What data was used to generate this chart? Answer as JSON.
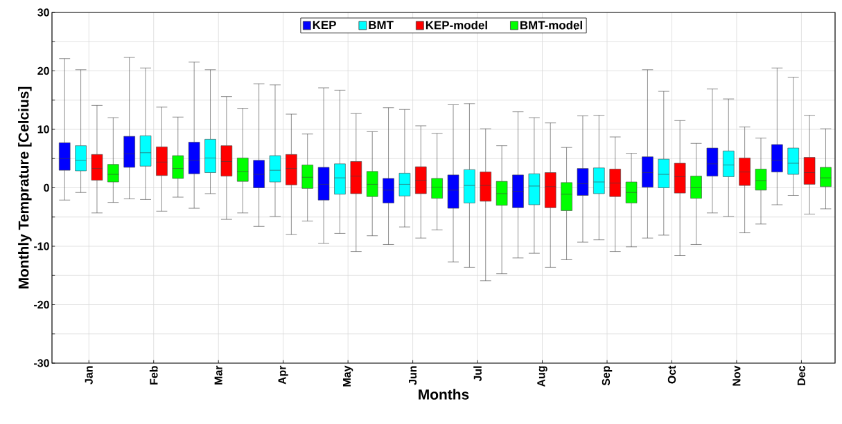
{
  "chart_data": {
    "type": "box",
    "xlabel": "Months",
    "ylabel": "Monthly Temprature [Celcius]",
    "categories": [
      "Jan",
      "Feb",
      "Mar",
      "Apr",
      "May",
      "Jun",
      "Jul",
      "Aug",
      "Sep",
      "Oct",
      "Nov",
      "Dec"
    ],
    "ylim": [
      -30,
      30
    ],
    "yticks": [
      -30,
      {
        "value": -25,
        "label": null
      },
      -20,
      {
        "value": -15,
        "label": null
      },
      -10,
      {
        "value": -5,
        "label": null
      },
      0,
      {
        "value": 5,
        "label": null
      },
      10,
      {
        "value": 15,
        "label": null
      },
      20,
      {
        "value": 25,
        "label": null
      },
      30
    ],
    "grid": true,
    "legend": "top",
    "series": [
      {
        "name": "KEP",
        "color": "#0000ff",
        "boxes": [
          {
            "low": -2.1,
            "q1": 3.0,
            "median": 5.0,
            "q3": 7.7,
            "high": 22.1
          },
          {
            "low": -1.9,
            "q1": 3.5,
            "median": 5.8,
            "q3": 8.8,
            "high": 22.3
          },
          {
            "low": -3.5,
            "q1": 2.4,
            "median": 4.7,
            "q3": 7.8,
            "high": 21.5
          },
          {
            "low": -6.6,
            "q1": 0.0,
            "median": 2.3,
            "q3": 4.7,
            "high": 17.8
          },
          {
            "low": -9.5,
            "q1": -2.1,
            "median": 0.6,
            "q3": 3.5,
            "high": 17.1
          },
          {
            "low": -9.7,
            "q1": -2.6,
            "median": -0.4,
            "q3": 1.6,
            "high": 13.7
          },
          {
            "low": -12.7,
            "q1": -3.5,
            "median": -0.4,
            "q3": 2.2,
            "high": 14.2
          },
          {
            "low": -12.0,
            "q1": -3.4,
            "median": -0.6,
            "q3": 2.2,
            "high": 13.0
          },
          {
            "low": -9.3,
            "q1": -1.3,
            "median": 0.7,
            "q3": 3.3,
            "high": 12.3
          },
          {
            "low": -8.6,
            "q1": 0.1,
            "median": 2.6,
            "q3": 5.3,
            "high": 20.2
          },
          {
            "low": -4.3,
            "q1": 2.0,
            "median": 4.1,
            "q3": 6.8,
            "high": 16.9
          },
          {
            "low": -2.9,
            "q1": 2.7,
            "median": 4.7,
            "q3": 7.4,
            "high": 20.5
          }
        ]
      },
      {
        "name": "BMT",
        "color": "#00ffff",
        "boxes": [
          {
            "low": -0.8,
            "q1": 2.9,
            "median": 4.7,
            "q3": 7.2,
            "high": 20.2
          },
          {
            "low": -2.0,
            "q1": 3.7,
            "median": 6.0,
            "q3": 8.9,
            "high": 20.5
          },
          {
            "low": -1.0,
            "q1": 2.6,
            "median": 5.1,
            "q3": 8.3,
            "high": 20.2
          },
          {
            "low": -4.9,
            "q1": 1.0,
            "median": 3.0,
            "q3": 5.5,
            "high": 17.6
          },
          {
            "low": -7.8,
            "q1": -1.1,
            "median": 1.7,
            "q3": 4.1,
            "high": 16.7
          },
          {
            "low": -6.7,
            "q1": -1.4,
            "median": 0.6,
            "q3": 2.5,
            "high": 13.4
          },
          {
            "low": -13.6,
            "q1": -2.6,
            "median": 0.4,
            "q3": 3.1,
            "high": 14.4
          },
          {
            "low": -11.2,
            "q1": -2.9,
            "median": 0.3,
            "q3": 2.4,
            "high": 12.0
          },
          {
            "low": -8.9,
            "q1": -1.0,
            "median": 1.0,
            "q3": 3.4,
            "high": 12.4
          },
          {
            "low": -8.1,
            "q1": 0.0,
            "median": 2.3,
            "q3": 4.9,
            "high": 16.5
          },
          {
            "low": -4.9,
            "q1": 1.9,
            "median": 3.9,
            "q3": 6.3,
            "high": 15.2
          },
          {
            "low": -1.3,
            "q1": 2.3,
            "median": 4.2,
            "q3": 6.8,
            "high": 18.9
          }
        ]
      },
      {
        "name": "KEP-model",
        "color": "#ff0000",
        "boxes": [
          {
            "low": -4.3,
            "q1": 1.3,
            "median": 3.3,
            "q3": 5.7,
            "high": 14.1
          },
          {
            "low": -4.0,
            "q1": 2.1,
            "median": 4.4,
            "q3": 7.0,
            "high": 13.8
          },
          {
            "low": -5.4,
            "q1": 2.0,
            "median": 4.5,
            "q3": 7.2,
            "high": 15.6
          },
          {
            "low": -8.0,
            "q1": 0.5,
            "median": 3.3,
            "q3": 5.7,
            "high": 12.6
          },
          {
            "low": -10.9,
            "q1": -1.0,
            "median": 2.0,
            "q3": 4.5,
            "high": 12.7
          },
          {
            "low": -8.6,
            "q1": -1.0,
            "median": 1.3,
            "q3": 3.6,
            "high": 10.6
          },
          {
            "low": -15.9,
            "q1": -2.3,
            "median": 0.4,
            "q3": 2.7,
            "high": 10.1
          },
          {
            "low": -13.6,
            "q1": -3.4,
            "median": 0.2,
            "q3": 2.6,
            "high": 11.1
          },
          {
            "low": -10.9,
            "q1": -1.5,
            "median": 0.8,
            "q3": 3.2,
            "high": 8.7
          },
          {
            "low": -11.6,
            "q1": -0.9,
            "median": 1.9,
            "q3": 4.2,
            "high": 11.5
          },
          {
            "low": -7.7,
            "q1": 0.4,
            "median": 2.7,
            "q3": 5.1,
            "high": 10.4
          },
          {
            "low": -4.5,
            "q1": 0.6,
            "median": 2.6,
            "q3": 5.2,
            "high": 12.4
          }
        ]
      },
      {
        "name": "BMT-model",
        "color": "#00ff00",
        "boxes": [
          {
            "low": -2.5,
            "q1": 1.0,
            "median": 2.3,
            "q3": 4.0,
            "high": 12.0
          },
          {
            "low": -1.6,
            "q1": 1.6,
            "median": 3.3,
            "q3": 5.5,
            "high": 12.1
          },
          {
            "low": -4.3,
            "q1": 1.1,
            "median": 2.8,
            "q3": 5.1,
            "high": 13.6
          },
          {
            "low": -5.7,
            "q1": -0.1,
            "median": 1.8,
            "q3": 3.9,
            "high": 9.2
          },
          {
            "low": -8.2,
            "q1": -1.5,
            "median": 0.6,
            "q3": 2.8,
            "high": 9.6
          },
          {
            "low": -7.2,
            "q1": -1.8,
            "median": 0.1,
            "q3": 1.6,
            "high": 9.3
          },
          {
            "low": -14.7,
            "q1": -3.0,
            "median": -1.0,
            "q3": 1.1,
            "high": 7.2
          },
          {
            "low": -12.3,
            "q1": -3.9,
            "median": -1.1,
            "q3": 0.9,
            "high": 6.9
          },
          {
            "low": -10.1,
            "q1": -2.6,
            "median": -0.8,
            "q3": 1.0,
            "high": 5.9
          },
          {
            "low": -9.7,
            "q1": -1.8,
            "median": 0.0,
            "q3": 2.0,
            "high": 7.6
          },
          {
            "low": -6.2,
            "q1": -0.4,
            "median": 1.2,
            "q3": 3.2,
            "high": 8.5
          },
          {
            "low": -3.6,
            "q1": 0.2,
            "median": 1.7,
            "q3": 3.5,
            "high": 10.1
          }
        ]
      }
    ]
  }
}
